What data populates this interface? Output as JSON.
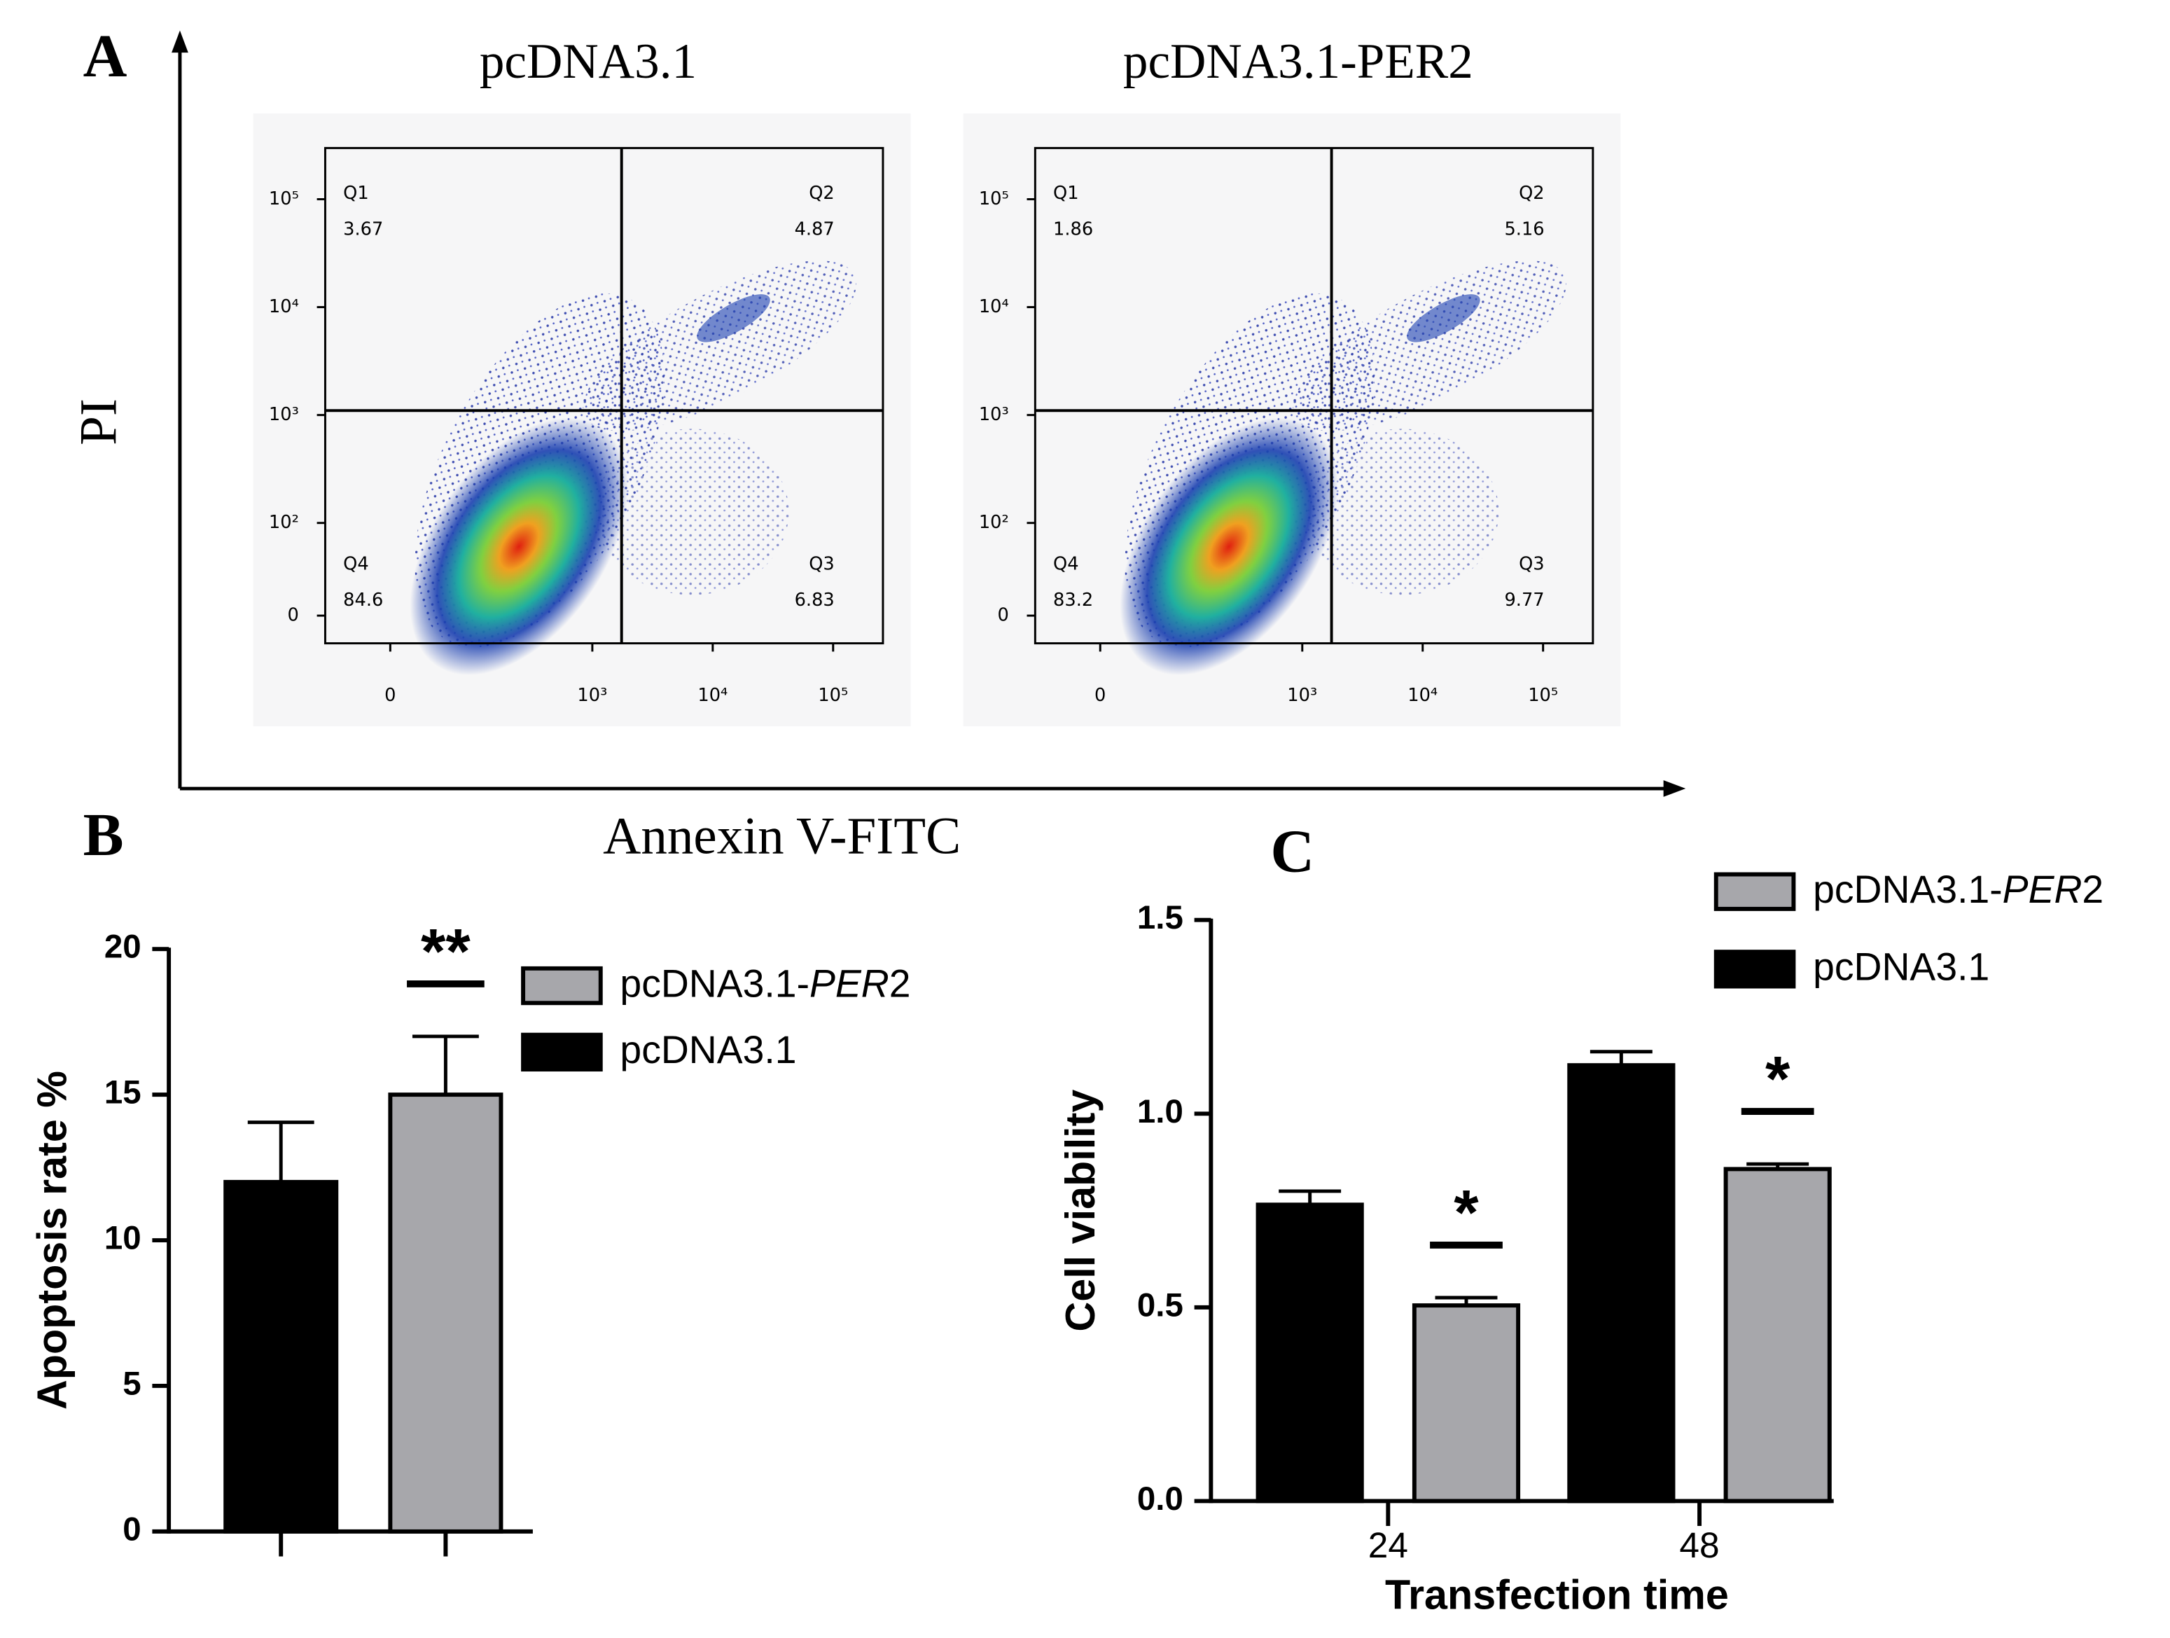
{
  "figure": {
    "panels": [
      "A",
      "B",
      "C"
    ],
    "x_label": "Annexin V-FITC",
    "y_label": "PI"
  },
  "chart_data": [
    {
      "type": "quadrant",
      "title": "pcDNA3.1",
      "xticks": [
        0,
        {
          "value": 1000,
          "label": "10³"
        },
        {
          "value": 10000,
          "label": "10⁴"
        },
        {
          "value": 100000,
          "label": "10⁵"
        }
      ],
      "yticks": [
        {
          "value": 100000,
          "label": "10⁵"
        },
        {
          "value": 10000,
          "label": "10⁴"
        },
        {
          "value": 1000,
          "label": "10³"
        },
        {
          "value": 100,
          "label": "10²"
        },
        0
      ],
      "xgate": 1750,
      "ygate": 1100,
      "quadrants": [
        {
          "name": "Q1",
          "value": 3.67
        },
        {
          "name": "Q2",
          "value": 4.87
        },
        {
          "name": "Q3",
          "value": 6.83
        },
        {
          "name": "Q4",
          "value": 84.6
        }
      ]
    },
    {
      "type": "quadrant",
      "title": "pcDNA3.1-PER2",
      "xticks": [
        0,
        {
          "value": 1000,
          "label": "10³"
        },
        {
          "value": 10000,
          "label": "10⁴"
        },
        {
          "value": 100000,
          "label": "10⁵"
        }
      ],
      "yticks": [
        {
          "value": 100000,
          "label": "10⁵"
        },
        {
          "value": 10000,
          "label": "10⁴"
        },
        {
          "value": 1000,
          "label": "10³"
        },
        {
          "value": 100,
          "label": "10²"
        },
        0
      ],
      "xgate": 1750,
      "ygate": 1100,
      "quadrants": [
        {
          "name": "Q1",
          "value": 1.86
        },
        {
          "name": "Q2",
          "value": 5.16
        },
        {
          "name": "Q3",
          "value": 9.77
        },
        {
          "name": "Q4",
          "value": 83.2
        }
      ]
    },
    {
      "type": "bar",
      "ylabel": "Apoptosis rate %",
      "categories": [
        null,
        null
      ],
      "series": [
        {
          "name": "pcDNA3.1",
          "color": "#000000",
          "values": [
            12,
            null
          ],
          "errors": [
            2.05,
            null
          ]
        },
        {
          "name": "pcDNA3.1-PER2",
          "color": "#a7a7ab",
          "values": [
            null,
            15
          ],
          "errors": [
            null,
            2
          ]
        }
      ],
      "ylim": [
        0,
        20
      ],
      "yticks": [
        0,
        5,
        10,
        15,
        20
      ],
      "annotations": [
        {
          "text": "**",
          "category": 1,
          "series": 1
        }
      ]
    },
    {
      "type": "bar",
      "ylabel": "Cell viability",
      "xlabel": "Transfection time",
      "categories": [
        "24",
        "48"
      ],
      "series": [
        {
          "name": "pcDNA3.1",
          "color": "#000000",
          "values": [
            0.765,
            1.125
          ],
          "errors": [
            0.035,
            0.035
          ]
        },
        {
          "name": "pcDNA3.1-PER2",
          "color": "#a7a7ab",
          "values": [
            0.505,
            0.857
          ],
          "errors": [
            0.02,
            0.013
          ]
        }
      ],
      "ylim": [
        0,
        1.5
      ],
      "yticks": [
        {
          "value": 0,
          "label": "0.0"
        },
        0.5,
        {
          "value": 1,
          "label": "1.0"
        },
        1.5
      ],
      "annotations": [
        {
          "text": "*",
          "category": 0,
          "series": 1
        },
        {
          "text": "*",
          "category": 1,
          "series": 1
        }
      ]
    }
  ]
}
